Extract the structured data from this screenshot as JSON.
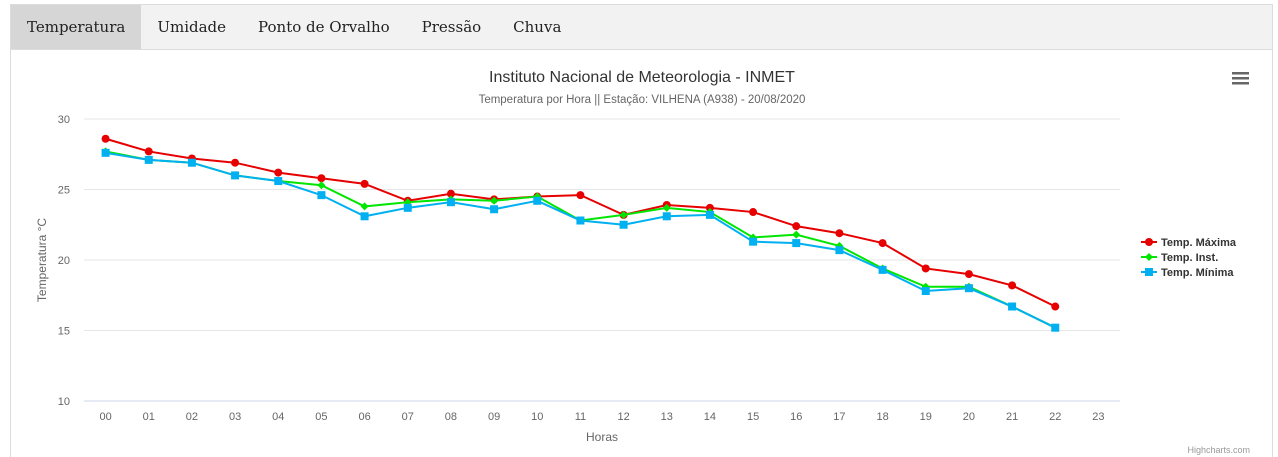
{
  "tabs": [
    {
      "label": "Temperatura",
      "active": true
    },
    {
      "label": "Umidade",
      "active": false
    },
    {
      "label": "Ponto de Orvalho",
      "active": false
    },
    {
      "label": "Pressão",
      "active": false
    },
    {
      "label": "Chuva",
      "active": false
    }
  ],
  "menu_icon": "hamburger-menu-icon",
  "credits": "Highcharts.com",
  "colors": {
    "max": "#e60000",
    "inst": "#00e600",
    "min": "#00b0f0",
    "grid": "#e6e6e6",
    "axis_text": "#666666"
  },
  "chart_data": {
    "type": "line",
    "title": "Instituto Nacional de Meteorologia - INMET",
    "subtitle": "Temperatura por Hora || Estação: VILHENA (A938) - 20/08/2020",
    "xlabel": "Horas",
    "ylabel": "Temperatura °C",
    "categories": [
      "00",
      "01",
      "02",
      "03",
      "04",
      "05",
      "06",
      "07",
      "08",
      "09",
      "10",
      "11",
      "12",
      "13",
      "14",
      "15",
      "16",
      "17",
      "18",
      "19",
      "20",
      "21",
      "22",
      "23"
    ],
    "ylim": [
      10,
      30
    ],
    "yticks": [
      10,
      15,
      20,
      25,
      30
    ],
    "grid": true,
    "legend_position": "right",
    "series": [
      {
        "name": "Temp. Máxima",
        "color": "#e60000",
        "marker": "circle",
        "values": [
          28.6,
          27.7,
          27.2,
          26.9,
          26.2,
          25.8,
          25.4,
          24.2,
          24.7,
          24.3,
          24.5,
          24.6,
          23.2,
          23.9,
          23.7,
          23.4,
          22.4,
          21.9,
          21.2,
          19.4,
          19.0,
          18.2,
          16.7,
          null
        ]
      },
      {
        "name": "Temp. Inst.",
        "color": "#00e600",
        "marker": "diamond",
        "values": [
          27.7,
          27.1,
          26.9,
          26.0,
          25.6,
          25.3,
          23.8,
          24.1,
          24.3,
          24.2,
          24.5,
          22.8,
          23.2,
          23.7,
          23.4,
          21.6,
          21.8,
          21.0,
          19.4,
          18.1,
          18.1,
          16.7,
          15.2,
          null
        ]
      },
      {
        "name": "Temp. Mínima",
        "color": "#00b0f0",
        "marker": "square",
        "values": [
          27.6,
          27.1,
          26.9,
          26.0,
          25.6,
          24.6,
          23.1,
          23.7,
          24.1,
          23.6,
          24.2,
          22.8,
          22.5,
          23.1,
          23.2,
          21.3,
          21.2,
          20.7,
          19.3,
          17.8,
          18.0,
          16.7,
          15.2,
          null
        ]
      }
    ]
  }
}
